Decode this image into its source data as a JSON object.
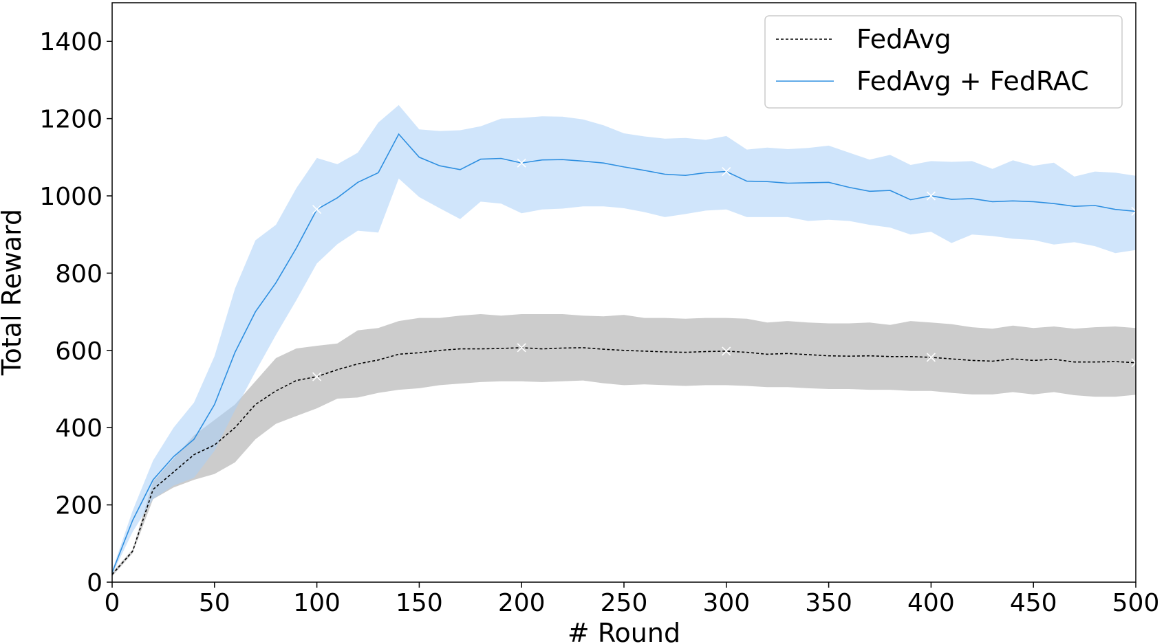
{
  "chart_data": {
    "type": "line",
    "title": "",
    "xlabel": "# Round",
    "ylabel": "Total Reward",
    "xlim": [
      0,
      500
    ],
    "ylim": [
      0,
      1500
    ],
    "xticks": [
      0,
      50,
      100,
      150,
      200,
      250,
      300,
      350,
      400,
      450,
      500
    ],
    "yticks": [
      0,
      200,
      400,
      600,
      800,
      1000,
      1200,
      1400
    ],
    "grid": false,
    "legend_position": "top-right",
    "x": [
      0,
      10,
      20,
      30,
      40,
      50,
      60,
      70,
      80,
      90,
      100,
      110,
      120,
      130,
      140,
      150,
      160,
      170,
      180,
      190,
      200,
      210,
      220,
      230,
      240,
      250,
      260,
      270,
      280,
      290,
      300,
      310,
      320,
      330,
      340,
      350,
      360,
      370,
      380,
      390,
      400,
      410,
      420,
      430,
      440,
      450,
      460,
      470,
      480,
      490,
      500
    ],
    "marker_x": [
      100,
      200,
      300,
      400,
      500
    ],
    "series": [
      {
        "name": "FedAvg",
        "color": "#000000",
        "band_color": "#999999",
        "line_style": "dashed",
        "values": [
          20,
          80,
          240,
          285,
          330,
          355,
          400,
          460,
          495,
          522,
          532,
          550,
          565,
          575,
          590,
          594,
          600,
          604,
          604,
          605,
          607,
          604,
          606,
          607,
          603,
          600,
          598,
          596,
          595,
          597,
          598,
          595,
          590,
          592,
          589,
          586,
          585,
          586,
          584,
          584,
          582,
          578,
          574,
          572,
          578,
          574,
          577,
          570,
          570,
          571,
          568
        ],
        "lower": [
          15,
          75,
          215,
          245,
          265,
          280,
          310,
          370,
          410,
          430,
          450,
          475,
          478,
          490,
          498,
          502,
          510,
          514,
          518,
          520,
          520,
          518,
          520,
          522,
          515,
          510,
          512,
          510,
          508,
          510,
          510,
          508,
          505,
          505,
          502,
          500,
          500,
          498,
          498,
          495,
          495,
          490,
          486,
          486,
          492,
          486,
          492,
          484,
          480,
          480,
          485
        ],
        "upper": [
          25,
          85,
          260,
          320,
          380,
          420,
          460,
          520,
          580,
          605,
          612,
          618,
          652,
          658,
          676,
          684,
          684,
          690,
          694,
          690,
          694,
          694,
          694,
          690,
          688,
          692,
          684,
          684,
          682,
          684,
          684,
          682,
          672,
          676,
          672,
          670,
          670,
          672,
          666,
          676,
          672,
          668,
          660,
          656,
          664,
          658,
          662,
          656,
          660,
          662,
          658
        ]
      },
      {
        "name": "FedAvg + FedRAC",
        "color": "#2e8fe0",
        "band_color": "#aad0f7",
        "line_style": "solid",
        "values": [
          25,
          160,
          265,
          325,
          370,
          460,
          595,
          700,
          775,
          865,
          965,
          995,
          1035,
          1060,
          1160,
          1100,
          1078,
          1068,
          1095,
          1097,
          1085,
          1093,
          1094,
          1090,
          1085,
          1075,
          1066,
          1056,
          1053,
          1060,
          1063,
          1038,
          1037,
          1033,
          1034,
          1035,
          1022,
          1012,
          1014,
          990,
          1000,
          991,
          993,
          985,
          987,
          985,
          980,
          973,
          975,
          965,
          960
        ],
        "lower": [
          20,
          130,
          215,
          250,
          270,
          340,
          445,
          545,
          640,
          730,
          825,
          875,
          910,
          905,
          1045,
          997,
          968,
          940,
          985,
          980,
          955,
          965,
          967,
          973,
          973,
          968,
          958,
          945,
          953,
          962,
          965,
          945,
          945,
          945,
          935,
          938,
          935,
          925,
          918,
          900,
          907,
          878,
          900,
          896,
          889,
          886,
          874,
          880,
          870,
          852,
          860
        ],
        "upper": [
          30,
          185,
          315,
          400,
          465,
          585,
          760,
          885,
          925,
          1020,
          1098,
          1082,
          1112,
          1190,
          1235,
          1172,
          1168,
          1170,
          1180,
          1200,
          1202,
          1206,
          1205,
          1198,
          1183,
          1162,
          1154,
          1148,
          1150,
          1145,
          1155,
          1120,
          1125,
          1121,
          1124,
          1130,
          1112,
          1094,
          1106,
          1080,
          1090,
          1088,
          1090,
          1070,
          1092,
          1078,
          1086,
          1050,
          1063,
          1060,
          1052
        ]
      }
    ]
  }
}
